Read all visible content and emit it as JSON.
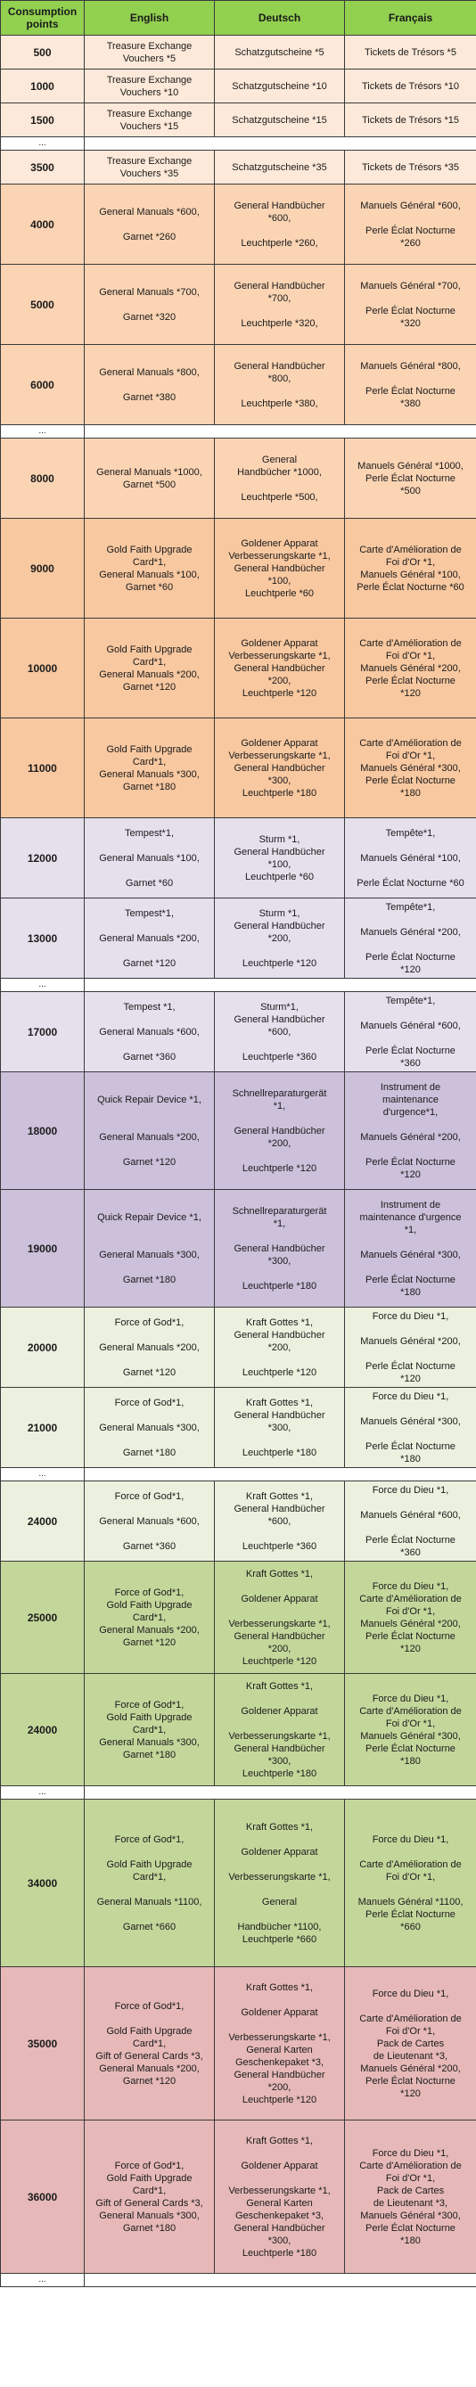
{
  "headers": [
    "Consumption points",
    "English",
    "Deutsch",
    "Français"
  ],
  "ellipsis": "...",
  "rows": [
    {
      "gap": false,
      "pts": "500",
      "en": "Treasure Exchange\nVouchers *5",
      "de": "Schatzgutscheine *5",
      "fr": "Tickets de Trésors *5",
      "color": "w",
      "h": 38
    },
    {
      "gap": false,
      "pts": "1000",
      "en": "Treasure Exchange\nVouchers *10",
      "de": "Schatzgutscheine *10",
      "fr": "Tickets de Trésors *10",
      "color": "w",
      "h": 38
    },
    {
      "gap": false,
      "pts": "1500",
      "en": "Treasure Exchange\nVouchers *15",
      "de": "Schatzgutscheine *15",
      "fr": "Tickets de Trésors *15",
      "color": "w",
      "h": 38
    },
    {
      "gap": true
    },
    {
      "gap": false,
      "pts": "3500",
      "en": "Treasure Exchange\nVouchers *35",
      "de": "Schatzgutscheine *35",
      "fr": "Tickets de Trésors *35",
      "color": "w",
      "h": 38
    },
    {
      "gap": false,
      "pts": "4000",
      "en": "General Manuals *600,\n\nGarnet *260",
      "de": "General Handbücher\n*600,\n\nLeuchtperle *260,",
      "fr": "Manuels Général *600,\n\nPerle Éclat Nocturne\n*260",
      "color": "o1",
      "h": 90
    },
    {
      "gap": false,
      "pts": "5000",
      "en": "General Manuals *700,\n\nGarnet *320",
      "de": "General Handbücher\n*700,\n\nLeuchtperle *320,",
      "fr": "Manuels Général *700,\n\nPerle Éclat Nocturne\n*320",
      "color": "o1",
      "h": 90
    },
    {
      "gap": false,
      "pts": "6000",
      "en": "General Manuals *800,\n\nGarnet *380",
      "de": "General Handbücher\n*800,\n\nLeuchtperle *380,",
      "fr": "Manuels Général *800,\n\nPerle Éclat Nocturne\n*380",
      "color": "o1",
      "h": 90
    },
    {
      "gap": true
    },
    {
      "gap": false,
      "pts": "8000",
      "en": "General Manuals *1000,\nGarnet *500",
      "de": "General\nHandbücher *1000,\n\nLeuchtperle *500,",
      "fr": "Manuels Général *1000,\nPerle Éclat Nocturne\n*500",
      "color": "o1",
      "h": 90
    },
    {
      "gap": false,
      "pts": "9000",
      "en": "Gold Faith Upgrade\nCard*1,\nGeneral Manuals *100,\nGarnet *60",
      "de": "Goldener Apparat\nVerbesserungskarte *1,\nGeneral Handbücher\n*100,\nLeuchtperle *60",
      "fr": "Carte d'Amélioration de\nFoi d'Or *1,\nManuels Général *100,\nPerle Éclat Nocturne *60",
      "color": "o2",
      "h": 112
    },
    {
      "gap": false,
      "pts": "10000",
      "en": "Gold Faith Upgrade\nCard*1,\nGeneral Manuals *200,\nGarnet *120",
      "de": "Goldener Apparat\nVerbesserungskarte *1,\nGeneral Handbücher\n*200,\nLeuchtperle *120",
      "fr": "Carte d'Amélioration de\nFoi d'Or *1,\nManuels Général *200,\nPerle Éclat Nocturne\n*120",
      "color": "o2",
      "h": 112
    },
    {
      "gap": false,
      "pts": "11000",
      "en": "Gold Faith Upgrade\nCard*1,\nGeneral Manuals *300,\nGarnet *180",
      "de": "Goldener Apparat\nVerbesserungskarte *1,\nGeneral Handbücher\n*300,\nLeuchtperle *180",
      "fr": "Carte d'Amélioration de\nFoi d'Or *1,\nManuels Général *300,\nPerle Éclat Nocturne\n*180",
      "color": "o2",
      "h": 112
    },
    {
      "gap": false,
      "pts": "12000",
      "en": "Tempest*1,\n\nGeneral Manuals *100,\n\nGarnet *60",
      "de": "Sturm *1,\nGeneral Handbücher\n*100,\nLeuchtperle *60",
      "fr": "Tempête*1,\n\nManuels Général *100,\n\nPerle Éclat Nocturne *60",
      "color": "l",
      "h": 90
    },
    {
      "gap": false,
      "pts": "13000",
      "en": "Tempest*1,\n\nGeneral Manuals *200,\n\nGarnet *120",
      "de": "Sturm *1,\nGeneral Handbücher\n*200,\n\nLeuchtperle *120",
      "fr": "Tempête*1,\n\nManuels Général *200,\n\nPerle Éclat Nocturne\n*120",
      "color": "l",
      "h": 90
    },
    {
      "gap": true
    },
    {
      "gap": false,
      "pts": "17000",
      "en": "Tempest *1,\n\nGeneral Manuals *600,\n\nGarnet *360",
      "de": "Sturm*1,\nGeneral Handbücher\n*600,\n\nLeuchtperle *360",
      "fr": "Tempête*1,\n\nManuels Général *600,\n\nPerle Éclat Nocturne\n*360",
      "color": "l",
      "h": 90
    },
    {
      "gap": false,
      "pts": "18000",
      "en": "Quick Repair Device *1,\n\n\nGeneral Manuals *200,\n\nGarnet *120",
      "de": "Schnellreparaturgerät\n*1,\n\nGeneral Handbücher\n*200,\n\nLeuchtperle *120",
      "fr": "Instrument de\nmaintenance\nd'urgence*1,\n\nManuels Général *200,\n\nPerle Éclat Nocturne\n*120",
      "color": "p",
      "h": 132
    },
    {
      "gap": false,
      "pts": "19000",
      "en": "Quick Repair Device *1,\n\n\nGeneral Manuals *300,\n\nGarnet *180",
      "de": "Schnellreparaturgerät\n*1,\n\nGeneral Handbücher\n*300,\n\nLeuchtperle *180",
      "fr": "Instrument de\nmaintenance d'urgence\n*1,\n\nManuels Général *300,\n\nPerle Éclat Nocturne\n*180",
      "color": "p",
      "h": 132
    },
    {
      "gap": false,
      "pts": "20000",
      "en": "Force of God*1,\n\nGeneral Manuals *200,\n\nGarnet *120",
      "de": "Kraft Gottes *1,\nGeneral Handbücher\n*200,\n\nLeuchtperle *120",
      "fr": "Force du Dieu *1,\n\nManuels Général *200,\n\nPerle Éclat Nocturne\n*120",
      "color": "g1",
      "h": 90
    },
    {
      "gap": false,
      "pts": "21000",
      "en": "Force of God*1,\n\nGeneral Manuals *300,\n\nGarnet *180",
      "de": "Kraft Gottes *1,\nGeneral Handbücher\n*300,\n\nLeuchtperle *180",
      "fr": "Force du Dieu *1,\n\nManuels Général *300,\n\nPerle Éclat Nocturne\n*180",
      "color": "g1",
      "h": 90
    },
    {
      "gap": true
    },
    {
      "gap": false,
      "pts": "24000",
      "en": "Force of God*1,\n\nGeneral Manuals *600,\n\nGarnet *360",
      "de": "Kraft Gottes *1,\nGeneral Handbücher\n*600,\n\nLeuchtperle *360",
      "fr": "Force du Dieu *1,\n\nManuels Général *600,\n\nPerle Éclat Nocturne\n*360",
      "color": "g1",
      "h": 90
    },
    {
      "gap": false,
      "pts": "25000",
      "en": "Force of God*1,\nGold Faith Upgrade\nCard*1,\nGeneral Manuals *200,\nGarnet *120",
      "de": "Kraft Gottes *1,\n\nGoldener Apparat\n\nVerbesserungskarte *1,\nGeneral Handbücher\n*200,\nLeuchtperle *120",
      "fr": "Force du Dieu *1,\nCarte d'Amélioration de\nFoi d'Or *1,\nManuels Général *200,\nPerle Éclat Nocturne\n*120",
      "color": "g2",
      "h": 126
    },
    {
      "gap": false,
      "pts": "24000",
      "en": "Force of God*1,\nGold Faith Upgrade\nCard*1,\nGeneral Manuals *300,\nGarnet *180",
      "de": "Kraft Gottes *1,\n\nGoldener Apparat\n\nVerbesserungskarte *1,\nGeneral Handbücher\n*300,\nLeuchtperle *180",
      "fr": "Force du Dieu *1,\nCarte d'Amélioration de\nFoi d'Or *1,\nManuels Général *300,\nPerle Éclat Nocturne\n*180",
      "color": "g2",
      "h": 126
    },
    {
      "gap": true
    },
    {
      "gap": false,
      "pts": "34000",
      "en": "Force of God*1,\n\nGold Faith Upgrade\nCard*1,\n\nGeneral Manuals *1100,\n\nGarnet *660",
      "de": "Kraft Gottes *1,\n\nGoldener Apparat\n\nVerbesserungskarte *1,\n\nGeneral\n\nHandbücher *1100,\nLeuchtperle *660",
      "fr": "Force du Dieu *1,\n\nCarte d'Amélioration de\nFoi d'Or *1,\n\nManuels Général *1100,\nPerle Éclat Nocturne\n*660",
      "color": "g2",
      "h": 188
    },
    {
      "gap": false,
      "pts": "35000",
      "en": "Force of God*1,\n\nGold Faith Upgrade\nCard*1,\nGift of General Cards *3,\nGeneral Manuals *200,\nGarnet *120",
      "de": "Kraft Gottes *1,\n\nGoldener Apparat\n\nVerbesserungskarte *1,\nGeneral Karten\nGeschenkepaket *3,\nGeneral Handbücher\n*200,\nLeuchtperle *120",
      "fr": "Force du Dieu *1,\n\nCarte d'Amélioration de\nFoi d'Or *1,\nPack de Cartes\nde Lieutenant *3,\nManuels Général *200,\nPerle Éclat Nocturne\n*120",
      "color": "r",
      "h": 172
    },
    {
      "gap": false,
      "pts": "36000",
      "en": "Force of God*1,\nGold Faith Upgrade\nCard*1,\nGift of General Cards *3,\nGeneral Manuals *300,\nGarnet *180",
      "de": "Kraft Gottes *1,\n\nGoldener Apparat\n\nVerbesserungskarte *1,\nGeneral Karten\nGeschenkepaket *3,\nGeneral Handbücher\n*300,\nLeuchtperle *180",
      "fr": "Force du Dieu *1,\nCarte d'Amélioration de\nFoi d'Or *1,\nPack de Cartes\nde Lieutenant *3,\nManuels Général *300,\nPerle Éclat Nocturne\n*180",
      "color": "r",
      "h": 172
    },
    {
      "gap": true
    }
  ]
}
